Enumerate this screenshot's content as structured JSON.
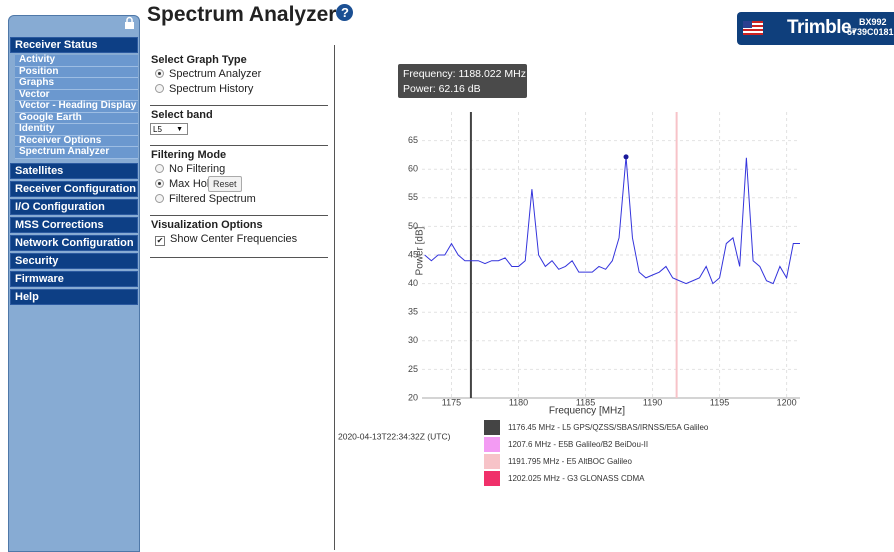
{
  "header": {
    "title": "Spectrum Analyzer",
    "brand": "Trimble.",
    "model": "BX992",
    "serial": "5739C0181"
  },
  "sidebar": {
    "sections": [
      {
        "title": "Receiver Status",
        "items": [
          "Activity",
          "Position",
          "Graphs",
          "Vector",
          "Vector - Heading Display",
          "Google Earth",
          "Identity",
          "Receiver Options",
          "Spectrum Analyzer"
        ]
      },
      {
        "title": "Satellites"
      },
      {
        "title": "Receiver Configuration"
      },
      {
        "title": "I/O Configuration"
      },
      {
        "title": "MSS Corrections"
      },
      {
        "title": "Network Configuration"
      },
      {
        "title": "Security"
      },
      {
        "title": "Firmware"
      },
      {
        "title": "Help"
      }
    ]
  },
  "controls": {
    "graph_type": {
      "title": "Select Graph Type",
      "options": [
        "Spectrum Analyzer",
        "Spectrum History"
      ]
    },
    "band": {
      "title": "Select band",
      "value": "L5"
    },
    "filtering": {
      "title": "Filtering Mode",
      "options": [
        "No Filtering",
        "Max Hold",
        "Filtered Spectrum"
      ],
      "reset": "Reset"
    },
    "visualization": {
      "title": "Visualization Options",
      "options": [
        "Show Center Frequencies"
      ]
    }
  },
  "timestamp": "2020-04-13T22:34:32Z (UTC)",
  "chart_data": {
    "type": "line",
    "xlabel": "Frequency [MHz]",
    "ylabel": "Power [dB]",
    "color": "#3434dc",
    "grid": true,
    "xlim": [
      1172.8,
      1201
    ],
    "ylim": [
      20,
      70
    ],
    "xticks": [
      1175,
      1180,
      1185,
      1190,
      1195,
      1200
    ],
    "yticks": [
      20,
      25,
      30,
      35,
      40,
      45,
      50,
      55,
      60,
      65
    ],
    "x": [
      1173,
      1173.5,
      1174,
      1174.5,
      1175,
      1175.5,
      1176,
      1176.5,
      1177,
      1177.5,
      1178,
      1178.5,
      1179,
      1179.5,
      1180,
      1180.5,
      1181,
      1181.5,
      1182,
      1182.5,
      1183,
      1183.5,
      1184,
      1184.5,
      1185,
      1185.5,
      1186,
      1186.5,
      1187,
      1187.5,
      1188.022,
      1188.5,
      1189,
      1189.5,
      1190,
      1190.5,
      1191,
      1191.5,
      1192,
      1192.5,
      1193,
      1193.5,
      1194,
      1194.5,
      1195,
      1195.5,
      1196,
      1196.5,
      1197,
      1197.5,
      1198,
      1198.5,
      1199,
      1199.5,
      1200,
      1200.5,
      1201
    ],
    "values": [
      45,
      44,
      45,
      45,
      47,
      45,
      44,
      44,
      44,
      43.5,
      44,
      44,
      44.5,
      43,
      43,
      44,
      56.5,
      45,
      43,
      44,
      42.5,
      43,
      44,
      42,
      42,
      42,
      43,
      42.5,
      44,
      48,
      62.16,
      48,
      42,
      41,
      41.5,
      42,
      43,
      41,
      40.5,
      40,
      40.5,
      41,
      43,
      40,
      41,
      47,
      48,
      43,
      62,
      44,
      43,
      40.5,
      40,
      43,
      41,
      47,
      47
    ],
    "tooltip": {
      "frequency": "Frequency: 1188.022 MHz",
      "power": "Power: 62.16 dB"
    },
    "center_frequencies": [
      {
        "frequency": 1176.45,
        "label": "1176.45 MHz - L5 GPS/QZSS/SBAS/IRNSS/E5A Galileo",
        "color": "#444444"
      },
      {
        "frequency": 1207.6,
        "label": "1207.6 MHz - E5B Galileo/B2 BeiDou-II",
        "color": "#f39bf3"
      },
      {
        "frequency": 1191.795,
        "label": "1191.795 MHz - E5 AltBOC Galileo",
        "color": "#f7c3c8"
      },
      {
        "frequency": 1202.025,
        "label": "1202.025 MHz - G3 GLONASS CDMA",
        "color": "#f0306a"
      }
    ]
  }
}
